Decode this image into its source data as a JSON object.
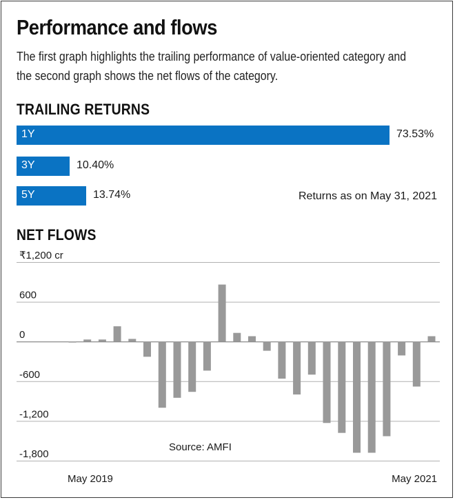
{
  "header": {
    "title": "Performance and flows",
    "subtitle": "The first graph highlights the trailing performance of value-oriented category and the second graph shows the net flows of the category."
  },
  "trailing_returns": {
    "heading": "TRAILING RETURNS",
    "note": "Returns as on May 31, 2021",
    "bar_color": "#0a73c3"
  },
  "net_flows": {
    "heading": "NET FLOWS",
    "source": "Source: AMFI",
    "bar_color": "#999999"
  },
  "chart_data": [
    {
      "type": "bar",
      "orientation": "horizontal",
      "title": "TRAILING RETURNS",
      "categories": [
        "1Y",
        "3Y",
        "5Y"
      ],
      "values": [
        73.53,
        10.4,
        13.74
      ],
      "value_labels": [
        "73.53%",
        "10.40%",
        "13.74%"
      ],
      "unit": "%",
      "annotation": "Returns as on May 31, 2021"
    },
    {
      "type": "bar",
      "title": "NET FLOWS",
      "unit_label": "₹1,200  cr",
      "ylim": [
        -1800,
        1200
      ],
      "yticks": [
        1200,
        600,
        0,
        -600,
        -1200,
        -1800
      ],
      "ytick_labels": [
        "₹1,200  cr",
        "600",
        "0",
        "-600",
        "-1,200",
        "-1,800"
      ],
      "grid": true,
      "x_start_label": "May 2019",
      "x_end_label": "May 2021",
      "values": [
        -10,
        30,
        30,
        230,
        40,
        -230,
        -1000,
        -850,
        -760,
        -440,
        860,
        130,
        80,
        -140,
        -560,
        -800,
        -500,
        -1230,
        -1380,
        -1680,
        -1680,
        -1430,
        -210,
        -680,
        80
      ],
      "source": "Source: AMFI"
    }
  ]
}
